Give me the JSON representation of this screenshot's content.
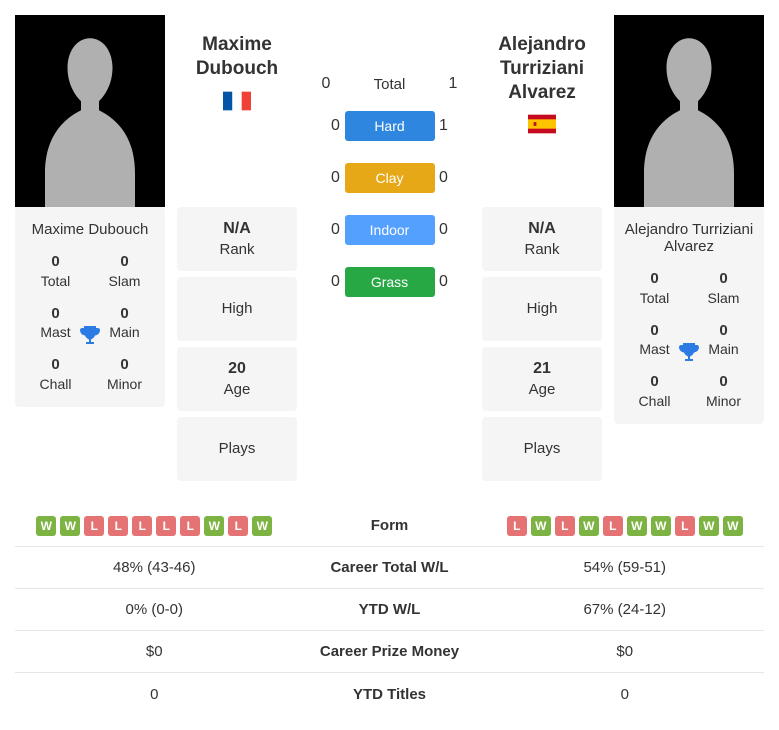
{
  "colors": {
    "card_bg": "#f5f5f5",
    "text": "#333333",
    "trophy": "#2c7be5",
    "surface_hard": "#2e86de",
    "surface_clay": "#e6a817",
    "surface_indoor": "#54a0ff",
    "surface_grass": "#28a745",
    "form_win": "#7cb342",
    "form_loss": "#e57373",
    "divider": "#e6e6e6"
  },
  "player1": {
    "name": "Maxime Dubouch",
    "flag": "france",
    "titles": {
      "total": {
        "value": "0",
        "label": "Total"
      },
      "slam": {
        "value": "0",
        "label": "Slam"
      },
      "mast": {
        "value": "0",
        "label": "Mast"
      },
      "main": {
        "value": "0",
        "label": "Main"
      },
      "chall": {
        "value": "0",
        "label": "Chall"
      },
      "minor": {
        "value": "0",
        "label": "Minor"
      }
    },
    "meta": {
      "rank": {
        "value": "N/A",
        "label": "Rank"
      },
      "high": {
        "value": "",
        "label": "High"
      },
      "age": {
        "value": "20",
        "label": "Age"
      },
      "plays": {
        "value": "",
        "label": "Plays"
      }
    },
    "form": [
      "W",
      "W",
      "L",
      "L",
      "L",
      "L",
      "L",
      "W",
      "L",
      "W"
    ],
    "career_wl": "48% (43-46)",
    "ytd_wl": "0% (0-0)",
    "prize": "$0",
    "ytd_titles": "0"
  },
  "player2": {
    "name": "Alejandro Turriziani Alvarez",
    "flag": "spain",
    "titles": {
      "total": {
        "value": "0",
        "label": "Total"
      },
      "slam": {
        "value": "0",
        "label": "Slam"
      },
      "mast": {
        "value": "0",
        "label": "Mast"
      },
      "main": {
        "value": "0",
        "label": "Main"
      },
      "chall": {
        "value": "0",
        "label": "Chall"
      },
      "minor": {
        "value": "0",
        "label": "Minor"
      }
    },
    "meta": {
      "rank": {
        "value": "N/A",
        "label": "Rank"
      },
      "high": {
        "value": "",
        "label": "High"
      },
      "age": {
        "value": "21",
        "label": "Age"
      },
      "plays": {
        "value": "",
        "label": "Plays"
      }
    },
    "form": [
      "L",
      "W",
      "L",
      "W",
      "L",
      "W",
      "W",
      "L",
      "W",
      "W"
    ],
    "career_wl": "54% (59-51)",
    "ytd_wl": "67% (24-12)",
    "prize": "$0",
    "ytd_titles": "0"
  },
  "h2h": {
    "total": {
      "p1": "0",
      "p2": "1",
      "label": "Total"
    },
    "surfaces": [
      {
        "name": "Hard",
        "color": "#2e86de",
        "p1": "0",
        "p2": "1"
      },
      {
        "name": "Clay",
        "color": "#e6a817",
        "p1": "0",
        "p2": "0"
      },
      {
        "name": "Indoor",
        "color": "#54a0ff",
        "p1": "0",
        "p2": "0"
      },
      {
        "name": "Grass",
        "color": "#28a745",
        "p1": "0",
        "p2": "0"
      }
    ]
  },
  "bottom_labels": {
    "form": "Form",
    "career_wl": "Career Total W/L",
    "ytd_wl": "YTD W/L",
    "prize": "Career Prize Money",
    "ytd_titles": "YTD Titles"
  }
}
